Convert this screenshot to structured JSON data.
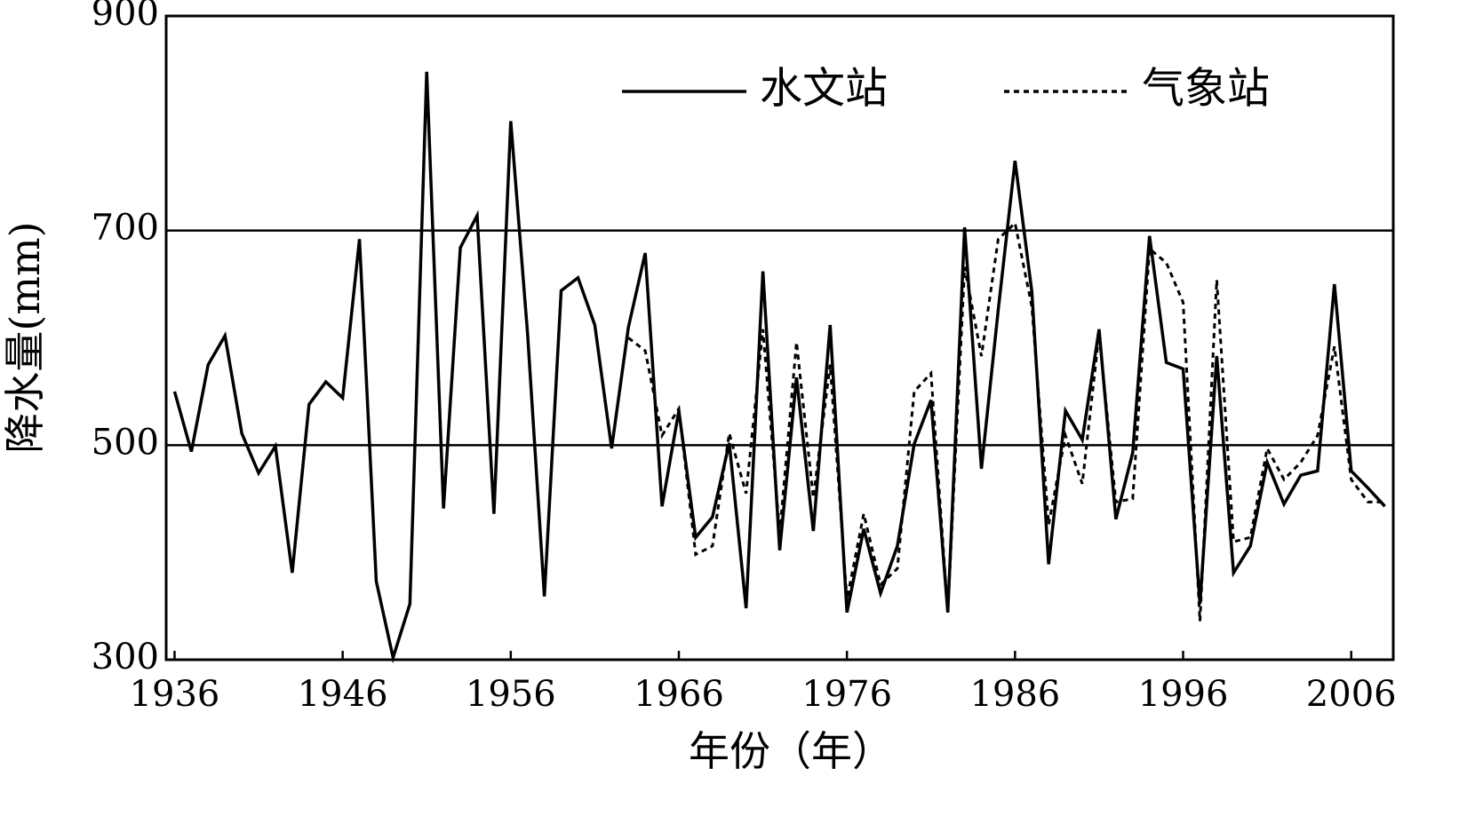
{
  "chart_data": {
    "type": "line",
    "x_label": "年份（年）",
    "y_label": "降水量(mm)",
    "x": [
      1936,
      1937,
      1938,
      1939,
      1940,
      1941,
      1942,
      1943,
      1944,
      1945,
      1946,
      1947,
      1948,
      1949,
      1950,
      1951,
      1952,
      1953,
      1954,
      1955,
      1956,
      1957,
      1958,
      1959,
      1960,
      1961,
      1962,
      1963,
      1964,
      1965,
      1966,
      1967,
      1968,
      1969,
      1970,
      1971,
      1972,
      1973,
      1974,
      1975,
      1976,
      1977,
      1978,
      1979,
      1980,
      1981,
      1982,
      1983,
      1984,
      1985,
      1986,
      1987,
      1988,
      1989,
      1990,
      1991,
      1992,
      1993,
      1994,
      1995,
      1996,
      1997,
      1998,
      1999,
      2000,
      2001,
      2002,
      2003,
      2004,
      2005,
      2006,
      2007,
      2008
    ],
    "series": [
      {
        "name": "水文站",
        "color": "#000000",
        "dash": "solid",
        "values": [
          550,
          494,
          575,
          602,
          511,
          474,
          499,
          381,
          538,
          559,
          544,
          692,
          373,
          302,
          352,
          848,
          441,
          684,
          714,
          436,
          802,
          604,
          359,
          644,
          656,
          612,
          497,
          610,
          679,
          443,
          532,
          414,
          433,
          502,
          348,
          662,
          402,
          563,
          420,
          612,
          344,
          422,
          362,
          406,
          501,
          542,
          344,
          703,
          478,
          626,
          765,
          643,
          389,
          532,
          505,
          608,
          431,
          493,
          695,
          577,
          571,
          352,
          583,
          381,
          406,
          484,
          445,
          472,
          476,
          650,
          476,
          460,
          443
        ]
      },
      {
        "name": "气象站",
        "color": "#000000",
        "dash": "dotted",
        "values": [
          null,
          null,
          null,
          null,
          null,
          null,
          null,
          null,
          null,
          null,
          null,
          null,
          null,
          null,
          null,
          null,
          null,
          null,
          null,
          null,
          null,
          null,
          null,
          null,
          null,
          null,
          null,
          600,
          588,
          509,
          534,
          398,
          406,
          511,
          455,
          608,
          418,
          596,
          451,
          575,
          356,
          436,
          370,
          385,
          550,
          567,
          344,
          666,
          583,
          692,
          707,
          629,
          426,
          509,
          464,
          604,
          447,
          450,
          683,
          670,
          633,
          336,
          654,
          410,
          414,
          497,
          468,
          484,
          509,
          592,
          468,
          447,
          447
        ]
      }
    ],
    "xlim": [
      1935.5,
      2008.5
    ],
    "xticks": [
      1936,
      1946,
      1956,
      1966,
      1976,
      1986,
      1996,
      2006
    ],
    "ylim": [
      300,
      900
    ],
    "yticks": [
      300,
      500,
      700,
      900
    ],
    "grid": true,
    "legend": "top-right"
  }
}
